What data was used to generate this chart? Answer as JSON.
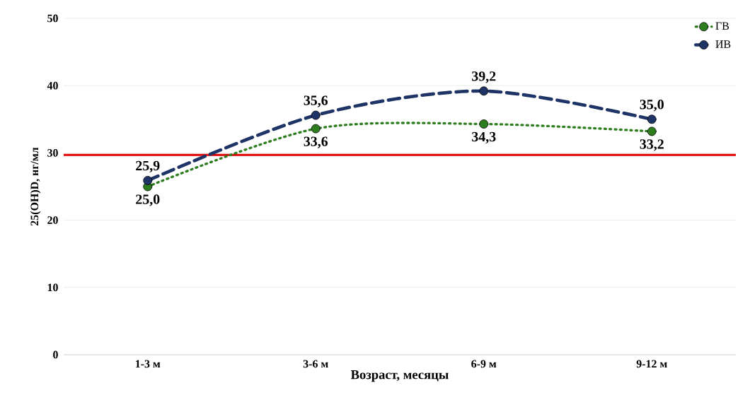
{
  "chart_data": {
    "type": "line",
    "xlabel": "Возраст, месяцы",
    "ylabel": "25(OH)D, нг/мл",
    "categories": [
      "1-3 м",
      "3-6 м",
      "6-9 м",
      "9-12 м"
    ],
    "series": [
      {
        "name": "ГВ",
        "color": "#2e7d1e",
        "values": [
          25.0,
          33.6,
          34.3,
          33.2
        ],
        "value_labels": [
          "25,0",
          "33,6",
          "34,3",
          "33,2"
        ],
        "line_style": "dotted",
        "marker": "circle"
      },
      {
        "name": "ИВ",
        "color": "#1f3466",
        "values": [
          25.9,
          35.6,
          39.2,
          35.0
        ],
        "value_labels": [
          "25,9",
          "35,6",
          "39,2",
          "35,0"
        ],
        "line_style": "dashed",
        "marker": "circle"
      }
    ],
    "ylim": [
      0,
      50
    ],
    "yticks": [
      0,
      10,
      20,
      30,
      40,
      50
    ],
    "grid": "y",
    "legend": "top right",
    "ref_lines": [
      {
        "axis": "y",
        "value": 29.7,
        "color": "#e00000"
      }
    ]
  }
}
